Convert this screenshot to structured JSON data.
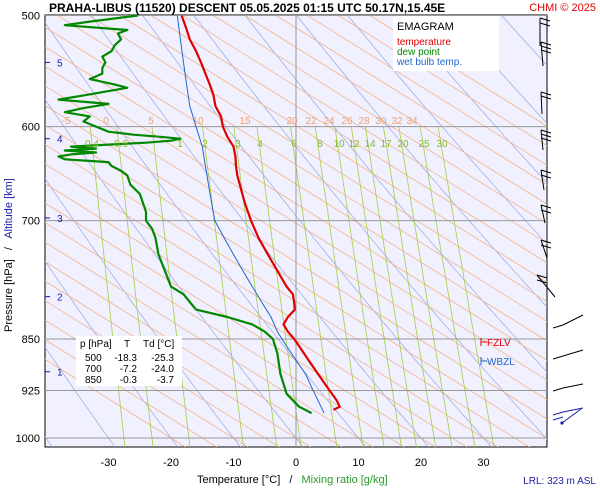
{
  "header": {
    "title": "PRAHA-LIBUS (11520)  DESCENT  05.05.2025 01:15 UTC  50.17N,15.45E",
    "copyright": "CHMI © 2025"
  },
  "legend": {
    "title": "EMAGRAM",
    "items": [
      {
        "label": "temperature",
        "color": "#e00000"
      },
      {
        "label": "dew point",
        "color": "#008800"
      },
      {
        "label": "wet bulb temp.",
        "color": "#2266cc"
      }
    ]
  },
  "axes": {
    "y_label_left": "Pressure [hPa]",
    "y_label_sep": "/",
    "y_label_right": "Altitude [km]",
    "x_label_left": "Temperature [°C]",
    "x_label_sep": "/",
    "x_label_right": "Mixing ratio [g/kg]"
  },
  "table": {
    "header": [
      "p [hPa]",
      "T",
      "Td [°C]"
    ],
    "rows": [
      [
        "500",
        "-18.3",
        "-25.3"
      ],
      [
        "700",
        "-7.2",
        "-24.0"
      ],
      [
        "850",
        "-0.3",
        "-3.7"
      ]
    ]
  },
  "markers": {
    "fzlv": "FZLV",
    "wbzl": "WBZL"
  },
  "footer": {
    "lrl": "LRL: 323 m ASL"
  },
  "chart_data": {
    "type": "line",
    "title": "PRAHA-LIBUS (11520)  DESCENT  05.05.2025 01:15 UTC  50.17N,15.45E",
    "xlabel": "Temperature [°C] / Mixing ratio [g/kg]",
    "ylabel": "Pressure [hPa] / Altitude [km]",
    "xlim": [
      -39,
      33
    ],
    "ylim": [
      1010,
      500
    ],
    "y_scale": "log",
    "x_ticks": [
      -30,
      -20,
      -10,
      0,
      10,
      20,
      30
    ],
    "y_ticks": [
      500,
      600,
      700,
      850,
      925,
      1000
    ],
    "altitude_ticks": [
      {
        "label": "5",
        "p": 540
      },
      {
        "label": "4",
        "p": 612
      },
      {
        "label": "3",
        "p": 697
      },
      {
        "label": "2",
        "p": 793
      },
      {
        "label": "1",
        "p": 897
      }
    ],
    "isotherm_labels_600": [
      "-5",
      "0",
      "5",
      "10",
      "15",
      "20",
      "22",
      "24",
      "26",
      "28",
      "30",
      "32",
      "34"
    ],
    "mixing_ratio_labels": [
      "0.4",
      "0.6",
      "1",
      "2",
      "3",
      "4",
      "6",
      "8",
      "10",
      "12",
      "14",
      "17",
      "20",
      "25",
      "30"
    ],
    "series": [
      {
        "name": "temperature",
        "color": "#e00000",
        "p": [
          500,
          510,
          520,
          530,
          540,
          550,
          560,
          570,
          580,
          590,
          600,
          610,
          620,
          630,
          640,
          650,
          660,
          680,
          700,
          720,
          740,
          760,
          780,
          790,
          800,
          810,
          820,
          830,
          840,
          850,
          860,
          880,
          900,
          920,
          940,
          950,
          955
        ],
        "t": [
          -18.3,
          -17.6,
          -17.0,
          -16.0,
          -15.2,
          -14.5,
          -13.8,
          -13.2,
          -12.9,
          -12.0,
          -11.7,
          -11.0,
          -10.0,
          -9.7,
          -9.6,
          -9.4,
          -9.0,
          -8.2,
          -7.2,
          -6.0,
          -4.5,
          -3.0,
          -1.5,
          -0.5,
          -0.3,
          -0.2,
          -1.3,
          -2.0,
          -1.3,
          -0.3,
          0.5,
          2.0,
          3.5,
          5.0,
          6.5,
          7.0,
          6.0
        ]
      },
      {
        "name": "dew point",
        "color": "#008800",
        "p": [
          500,
          505,
          508,
          512,
          515,
          520,
          525,
          530,
          535,
          540,
          545,
          550,
          555,
          560,
          563,
          566,
          570,
          574,
          578,
          582,
          586,
          590,
          595,
          600,
          605,
          608,
          610,
          612,
          614,
          616,
          618,
          620,
          622,
          624,
          626,
          628,
          630,
          633,
          636,
          640,
          645,
          650,
          660,
          670,
          680,
          690,
          700,
          710,
          720,
          740,
          760,
          780,
          790,
          800,
          810,
          820,
          830,
          840,
          850,
          870,
          900,
          930,
          950,
          960
        ],
        "t": [
          -25.3,
          -33.0,
          -37.0,
          -27.0,
          -28.5,
          -28.0,
          -29.0,
          -29.5,
          -31.0,
          -30.5,
          -31.0,
          -31.0,
          -33.0,
          -29.0,
          -27.0,
          -30.0,
          -34.0,
          -38.0,
          -30.0,
          -34.0,
          -37.0,
          -33.0,
          -34.0,
          -32.0,
          -30.0,
          -26.0,
          -22.0,
          -18.5,
          -20.0,
          -24.0,
          -30.0,
          -36.0,
          -32.0,
          -37.0,
          -32.0,
          -36.0,
          -38.0,
          -37.0,
          -30.0,
          -29.5,
          -28.0,
          -27.0,
          -26.5,
          -25.0,
          -24.5,
          -24.0,
          -24.0,
          -23.0,
          -22.5,
          -22.0,
          -21.0,
          -20.0,
          -18.0,
          -17.0,
          -16.0,
          -11.0,
          -7.0,
          -5.0,
          -3.7,
          -3.0,
          -2.5,
          -1.5,
          0.5,
          2.5
        ]
      },
      {
        "name": "wet bulb temp.",
        "color": "#2266cc",
        "p": [
          500,
          520,
          540,
          560,
          580,
          600,
          620,
          640,
          660,
          680,
          700,
          720,
          740,
          760,
          780,
          800,
          820,
          840,
          860,
          880,
          900,
          920,
          940,
          960
        ],
        "t": [
          -19.0,
          -18.5,
          -18.0,
          -17.5,
          -17.0,
          -16.0,
          -15.0,
          -14.5,
          -14.0,
          -13.5,
          -13.0,
          -11.5,
          -10.0,
          -8.5,
          -7.0,
          -5.5,
          -4.0,
          -3.0,
          -1.5,
          0.0,
          1.5,
          2.5,
          3.5,
          4.5
        ]
      }
    ],
    "wind_levels_hpa": [
      505,
      555,
      610,
      660,
      710,
      760,
      810,
      860,
      920,
      960,
      985
    ]
  }
}
